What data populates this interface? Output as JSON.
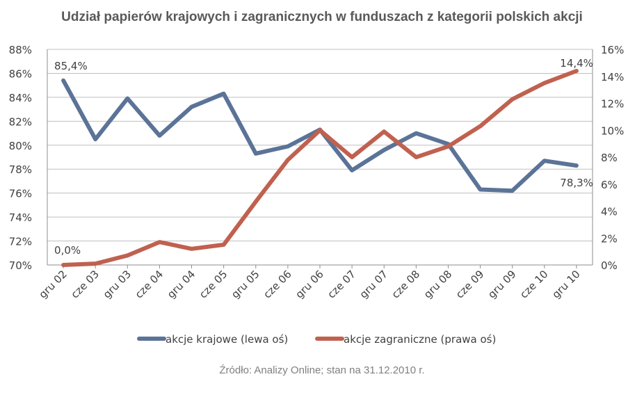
{
  "chart_data": {
    "type": "line",
    "title": "Udział papierów krajowych i zagranicznych w funduszach z kategorii polskich akcji",
    "source": "Źródło: Analizy Online; stan na 31.12.2010 r.",
    "categories": [
      "gru 02",
      "cze 03",
      "gru 03",
      "cze 04",
      "gru 04",
      "cze 05",
      "gru 05",
      "cze 06",
      "gru 06",
      "cze 07",
      "gru 07",
      "cze 08",
      "gru 08",
      "cze 09",
      "gru 09",
      "cze 10",
      "gru 10"
    ],
    "series": [
      {
        "name": "akcje krajowe (lewa oś)",
        "axis": "left",
        "color": "#5b7397",
        "values": [
          85.4,
          80.5,
          83.9,
          80.8,
          83.2,
          84.3,
          79.3,
          79.9,
          81.3,
          77.9,
          79.6,
          81.0,
          80.1,
          76.3,
          76.2,
          78.7,
          78.3
        ]
      },
      {
        "name": "akcje zagraniczne (prawa oś)",
        "axis": "right",
        "color": "#c0614f",
        "values": [
          0.0,
          0.1,
          0.7,
          1.7,
          1.2,
          1.5,
          4.7,
          7.8,
          10.0,
          8.0,
          9.9,
          8.0,
          8.8,
          10.3,
          12.3,
          13.5,
          14.4
        ]
      }
    ],
    "y_left": {
      "min": 70,
      "max": 88,
      "step": 2,
      "ticks": [
        "70%",
        "72%",
        "74%",
        "76%",
        "78%",
        "80%",
        "82%",
        "84%",
        "86%",
        "88%"
      ]
    },
    "y_right": {
      "min": 0,
      "max": 16,
      "step": 2,
      "ticks": [
        "0%",
        "2%",
        "4%",
        "6%",
        "8%",
        "10%",
        "12%",
        "14%",
        "16%"
      ]
    },
    "annotations": [
      {
        "series": 0,
        "index": 0,
        "text": "85,4%"
      },
      {
        "series": 0,
        "index": 16,
        "text": "78,3%"
      },
      {
        "series": 1,
        "index": 0,
        "text": "0,0%"
      },
      {
        "series": 1,
        "index": 16,
        "text": "14,4%"
      }
    ],
    "grid": true,
    "legend": "bottom"
  }
}
